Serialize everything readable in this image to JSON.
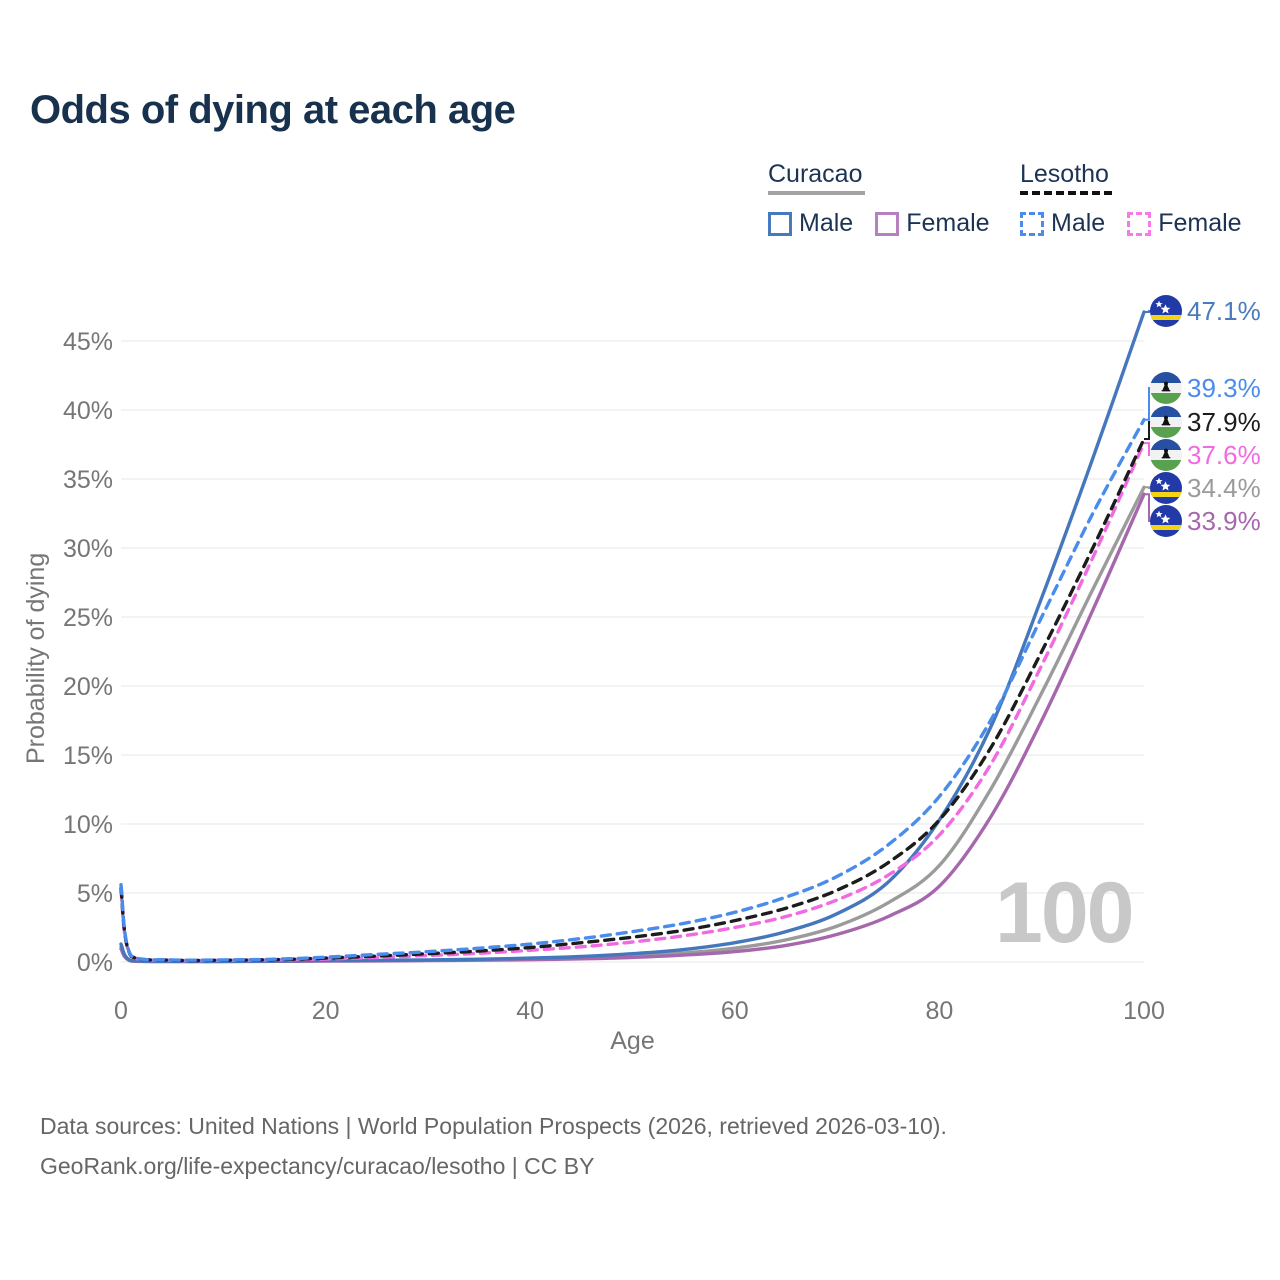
{
  "title": "Odds of dying at each age",
  "legend": {
    "groups": [
      {
        "label": "Curacao",
        "line_style": "solid",
        "items": [
          {
            "label": "Male",
            "color": "#4779bd"
          },
          {
            "label": "Female",
            "color": "#b57fc0"
          }
        ]
      },
      {
        "label": "Lesotho",
        "line_style": "dashed",
        "items": [
          {
            "label": "Male",
            "color": "#4a8ceb"
          },
          {
            "label": "Female",
            "color": "#f879ea"
          }
        ]
      }
    ]
  },
  "watermark": "100",
  "footer": {
    "line1": "Data sources: United Nations | World Population Prospects (2026, retrieved 2026-03-10).",
    "line2": "GeoRank.org/life-expectancy/curacao/lesotho | CC BY"
  },
  "chart_data": {
    "type": "line",
    "title": "Odds of dying at each age",
    "xlabel": "Age",
    "ylabel": "Probability of dying",
    "xlim": [
      0,
      100
    ],
    "ylim": [
      0,
      47.5
    ],
    "x_ticks": [
      0,
      20,
      40,
      60,
      80,
      100
    ],
    "y_ticks": [
      0,
      5,
      10,
      15,
      20,
      25,
      30,
      35,
      40,
      45
    ],
    "y_tick_suffix": "%",
    "grid": "horizontal",
    "legend_position": "top-right",
    "series": [
      {
        "name": "Curacao Male",
        "country": "Curacao",
        "sex": "Male",
        "color": "#4577bd",
        "dashed": false,
        "end_value": 47.1,
        "points": [
          [
            0,
            1.3
          ],
          [
            1,
            0.1
          ],
          [
            5,
            0.05
          ],
          [
            10,
            0.05
          ],
          [
            15,
            0.07
          ],
          [
            20,
            0.1
          ],
          [
            25,
            0.12
          ],
          [
            30,
            0.15
          ],
          [
            35,
            0.2
          ],
          [
            40,
            0.28
          ],
          [
            45,
            0.4
          ],
          [
            50,
            0.6
          ],
          [
            55,
            0.9
          ],
          [
            60,
            1.4
          ],
          [
            65,
            2.2
          ],
          [
            70,
            3.5
          ],
          [
            75,
            5.8
          ],
          [
            80,
            10.3
          ],
          [
            85,
            17.0
          ],
          [
            90,
            26.4
          ],
          [
            95,
            36.5
          ],
          [
            100,
            47.1
          ]
        ]
      },
      {
        "name": "Lesotho Male",
        "country": "Lesotho",
        "sex": "Male",
        "color": "#4a8ceb",
        "dashed": true,
        "end_value": 39.3,
        "points": [
          [
            0,
            5.6
          ],
          [
            1,
            0.45
          ],
          [
            5,
            0.15
          ],
          [
            10,
            0.15
          ],
          [
            15,
            0.2
          ],
          [
            20,
            0.35
          ],
          [
            25,
            0.55
          ],
          [
            30,
            0.75
          ],
          [
            35,
            1.0
          ],
          [
            40,
            1.3
          ],
          [
            45,
            1.7
          ],
          [
            50,
            2.2
          ],
          [
            55,
            2.8
          ],
          [
            60,
            3.6
          ],
          [
            65,
            4.7
          ],
          [
            70,
            6.2
          ],
          [
            75,
            8.5
          ],
          [
            80,
            12.0
          ],
          [
            85,
            17.5
          ],
          [
            90,
            25.0
          ],
          [
            95,
            32.5
          ],
          [
            100,
            39.3
          ]
        ]
      },
      {
        "name": "Lesotho Both sexes",
        "country": "Lesotho",
        "sex": "Both",
        "color": "#1c1c1c",
        "dashed": true,
        "end_value": 37.9,
        "points": [
          [
            0,
            5.35
          ],
          [
            1,
            0.42
          ],
          [
            5,
            0.13
          ],
          [
            10,
            0.13
          ],
          [
            15,
            0.17
          ],
          [
            20,
            0.28
          ],
          [
            25,
            0.43
          ],
          [
            30,
            0.6
          ],
          [
            35,
            0.8
          ],
          [
            40,
            1.05
          ],
          [
            45,
            1.4
          ],
          [
            50,
            1.8
          ],
          [
            55,
            2.3
          ],
          [
            60,
            3.0
          ],
          [
            65,
            3.9
          ],
          [
            70,
            5.2
          ],
          [
            75,
            7.2
          ],
          [
            80,
            10.3
          ],
          [
            85,
            15.5
          ],
          [
            90,
            22.5
          ],
          [
            95,
            30.0
          ],
          [
            100,
            37.9
          ]
        ]
      },
      {
        "name": "Lesotho Female",
        "country": "Lesotho",
        "sex": "Female",
        "color": "#f26ae2",
        "dashed": true,
        "end_value": 37.6,
        "points": [
          [
            0,
            5.1
          ],
          [
            1,
            0.4
          ],
          [
            5,
            0.12
          ],
          [
            10,
            0.12
          ],
          [
            15,
            0.15
          ],
          [
            20,
            0.22
          ],
          [
            25,
            0.33
          ],
          [
            30,
            0.47
          ],
          [
            35,
            0.63
          ],
          [
            40,
            0.85
          ],
          [
            45,
            1.1
          ],
          [
            50,
            1.45
          ],
          [
            55,
            1.9
          ],
          [
            60,
            2.5
          ],
          [
            65,
            3.3
          ],
          [
            70,
            4.5
          ],
          [
            75,
            6.3
          ],
          [
            80,
            9.2
          ],
          [
            85,
            14.3
          ],
          [
            90,
            21.5
          ],
          [
            95,
            29.3
          ],
          [
            100,
            37.6
          ]
        ]
      },
      {
        "name": "Curacao Both sexes",
        "country": "Curacao",
        "sex": "Both",
        "color": "#9b9b9b",
        "dashed": false,
        "end_value": 34.4,
        "points": [
          [
            0,
            1.1
          ],
          [
            1,
            0.08
          ],
          [
            5,
            0.04
          ],
          [
            10,
            0.04
          ],
          [
            15,
            0.06
          ],
          [
            20,
            0.09
          ],
          [
            25,
            0.1
          ],
          [
            30,
            0.12
          ],
          [
            35,
            0.16
          ],
          [
            40,
            0.22
          ],
          [
            45,
            0.3
          ],
          [
            50,
            0.45
          ],
          [
            55,
            0.65
          ],
          [
            60,
            1.0
          ],
          [
            65,
            1.6
          ],
          [
            70,
            2.6
          ],
          [
            75,
            4.3
          ],
          [
            80,
            7.0
          ],
          [
            85,
            12.5
          ],
          [
            90,
            19.5
          ],
          [
            95,
            27.0
          ],
          [
            100,
            34.4
          ]
        ]
      },
      {
        "name": "Curacao Female",
        "country": "Curacao",
        "sex": "Female",
        "color": "#a667ad",
        "dashed": false,
        "end_value": 33.9,
        "points": [
          [
            0,
            0.95
          ],
          [
            1,
            0.07
          ],
          [
            5,
            0.03
          ],
          [
            10,
            0.03
          ],
          [
            15,
            0.05
          ],
          [
            20,
            0.07
          ],
          [
            25,
            0.08
          ],
          [
            30,
            0.1
          ],
          [
            35,
            0.13
          ],
          [
            40,
            0.17
          ],
          [
            45,
            0.23
          ],
          [
            50,
            0.33
          ],
          [
            55,
            0.5
          ],
          [
            60,
            0.75
          ],
          [
            65,
            1.2
          ],
          [
            70,
            2.0
          ],
          [
            75,
            3.3
          ],
          [
            80,
            5.5
          ],
          [
            85,
            10.5
          ],
          [
            90,
            17.5
          ],
          [
            95,
            25.5
          ],
          [
            100,
            33.9
          ]
        ]
      }
    ],
    "end_labels": [
      {
        "text": "47.1%",
        "color": "#4a7bbd",
        "flag": "curacao"
      },
      {
        "text": "39.3%",
        "color": "#4a8ceb",
        "flag": "lesotho"
      },
      {
        "text": "37.9%",
        "color": "#1c1c1c",
        "flag": "lesotho"
      },
      {
        "text": "37.6%",
        "color": "#f26ae2",
        "flag": "lesotho"
      },
      {
        "text": "34.4%",
        "color": "#9b9b9b",
        "flag": "curacao"
      },
      {
        "text": "33.9%",
        "color": "#a667ad",
        "flag": "curacao"
      }
    ]
  }
}
